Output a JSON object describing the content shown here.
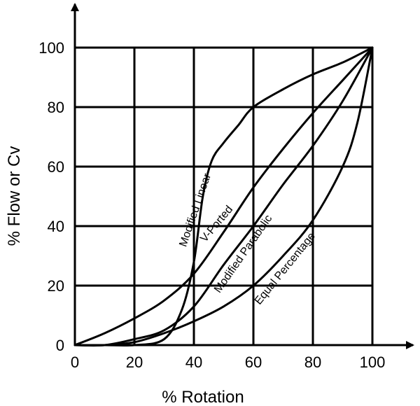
{
  "chart_data": {
    "type": "line",
    "title": "",
    "xlabel": "% Rotation",
    "ylabel": "% Flow or Cv",
    "xlim": [
      0,
      100
    ],
    "ylim": [
      0,
      100
    ],
    "x_ticks": [
      0,
      20,
      40,
      60,
      80,
      100
    ],
    "y_ticks": [
      0,
      20,
      40,
      60,
      80,
      100
    ],
    "grid": true,
    "legend": "none",
    "series": [
      {
        "name": "Modified Linear",
        "x": [
          0,
          10,
          20,
          30,
          36,
          40,
          43,
          46,
          50,
          55,
          60,
          70,
          80,
          90,
          100
        ],
        "y": [
          0,
          0,
          0,
          2,
          12,
          28,
          50,
          62,
          68,
          74,
          80,
          86,
          91,
          95,
          100
        ]
      },
      {
        "name": "V-Ported",
        "x": [
          0,
          10,
          20,
          30,
          40,
          50,
          60,
          70,
          80,
          90,
          100
        ],
        "y": [
          0,
          4,
          9,
          15,
          24,
          38,
          53,
          66,
          78,
          89,
          100
        ]
      },
      {
        "name": "Modified Parabolic",
        "x": [
          0,
          10,
          20,
          30,
          40,
          50,
          60,
          70,
          80,
          90,
          100
        ],
        "y": [
          0,
          0,
          2,
          5,
          13,
          27,
          40,
          54,
          67,
          82,
          100
        ]
      },
      {
        "name": "Equal Percentage",
        "x": [
          0,
          10,
          20,
          30,
          40,
          50,
          60,
          70,
          80,
          90,
          95,
          100
        ],
        "y": [
          0,
          0,
          1,
          4,
          8,
          13,
          20,
          30,
          42,
          60,
          75,
          100
        ]
      }
    ]
  }
}
